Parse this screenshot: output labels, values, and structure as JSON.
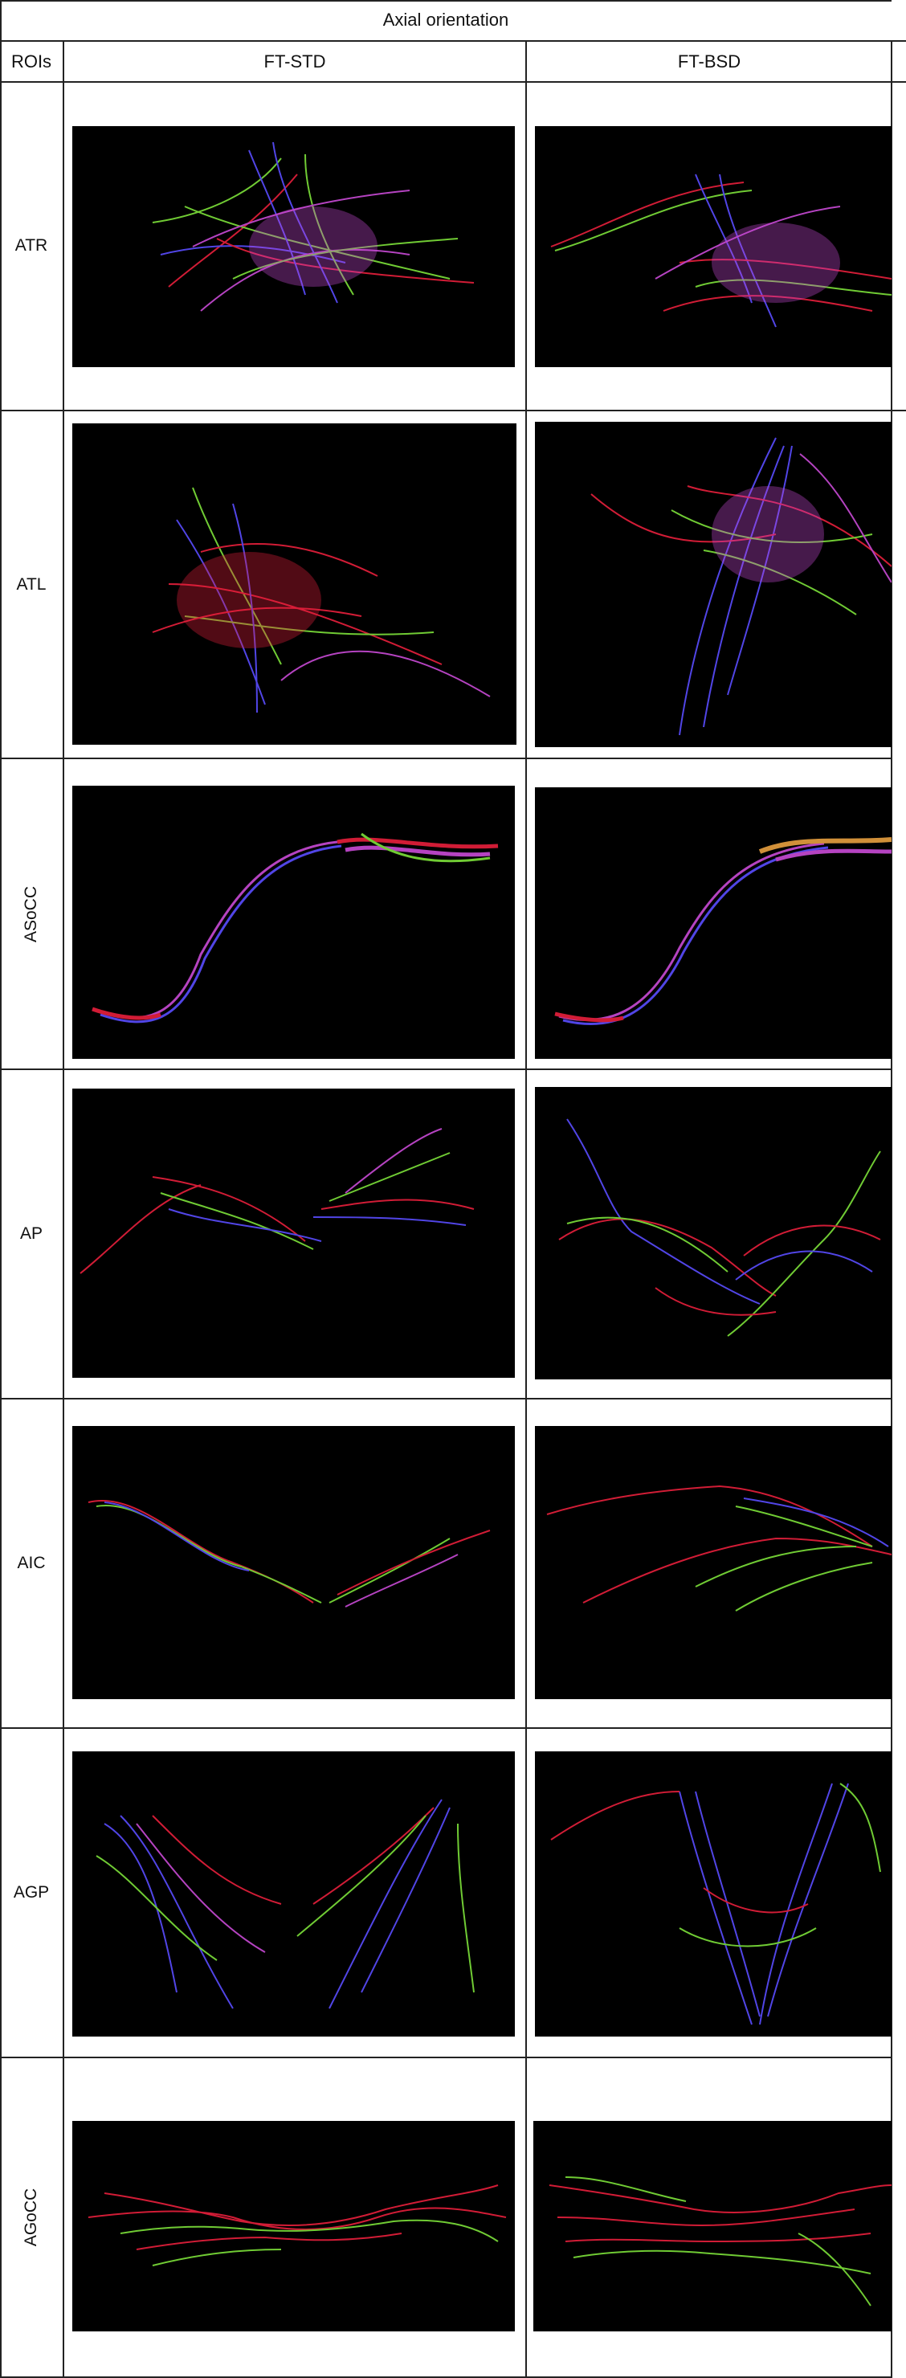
{
  "table": {
    "title": "Axial orientation",
    "col_roi": "ROIs",
    "col_std": "FT-STD",
    "col_bsd": "FT-BSD",
    "rows": [
      {
        "roi": "ATR"
      },
      {
        "roi": "ATL"
      },
      {
        "roi": "ASoCC"
      },
      {
        "roi": "AP"
      },
      {
        "roi": "AIC"
      },
      {
        "roi": "AGP"
      },
      {
        "roi": "AGoCC"
      }
    ]
  },
  "colors": {
    "background": "#ffffff",
    "image_bg": "#000000",
    "fiber_red": "#e8203c",
    "fiber_green": "#7de23a",
    "fiber_blue": "#5a4dff",
    "fiber_magenta": "#c94bd6"
  }
}
